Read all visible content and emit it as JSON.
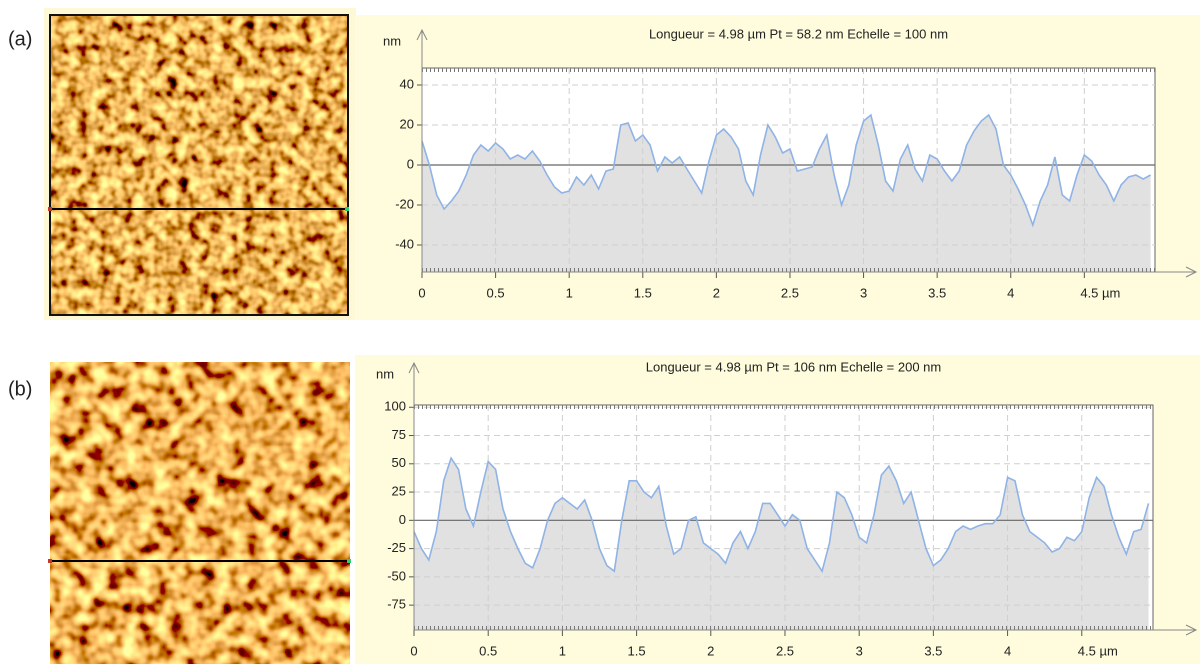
{
  "chart_data": [
    {
      "type": "area",
      "panel_label": "(a)",
      "title": "Longueur = 4.98 µm  Pt = 58.2 nm  Echelle = 100 nm",
      "y_label": "nm",
      "x": [
        0,
        0.05,
        0.1,
        0.15,
        0.2,
        0.25,
        0.3,
        0.35,
        0.4,
        0.45,
        0.5,
        0.55,
        0.6,
        0.65,
        0.7,
        0.75,
        0.8,
        0.85,
        0.9,
        0.95,
        1,
        1.05,
        1.1,
        1.15,
        1.2,
        1.25,
        1.3,
        1.35,
        1.4,
        1.45,
        1.5,
        1.55,
        1.6,
        1.65,
        1.7,
        1.75,
        1.8,
        1.85,
        1.9,
        1.95,
        2,
        2.05,
        2.1,
        2.15,
        2.2,
        2.25,
        2.3,
        2.35,
        2.4,
        2.45,
        2.5,
        2.55,
        2.6,
        2.65,
        2.7,
        2.75,
        2.8,
        2.85,
        2.9,
        2.95,
        3,
        3.05,
        3.1,
        3.15,
        3.2,
        3.25,
        3.3,
        3.35,
        3.4,
        3.45,
        3.5,
        3.55,
        3.6,
        3.65,
        3.7,
        3.75,
        3.8,
        3.85,
        3.9,
        3.95,
        4,
        4.05,
        4.1,
        4.15,
        4.2,
        4.25,
        4.3,
        4.35,
        4.4,
        4.45,
        4.5,
        4.55,
        4.6,
        4.65,
        4.7,
        4.75,
        4.8,
        4.85,
        4.9,
        4.95
      ],
      "values": [
        12,
        0,
        -15,
        -22,
        -18,
        -13,
        -5,
        5,
        10,
        7,
        11,
        8,
        3,
        5,
        3,
        7,
        2,
        -5,
        -11,
        -14,
        -13,
        -6,
        -10,
        -5,
        -12,
        -3,
        -2,
        20,
        21,
        12,
        15,
        10,
        -3,
        4,
        1,
        4,
        -2,
        -8,
        -14,
        2,
        15,
        18,
        14,
        8,
        -8,
        -15,
        5,
        20,
        14,
        6,
        8,
        -3,
        -2,
        -1,
        8,
        15,
        -5,
        -20,
        -10,
        10,
        22,
        25,
        10,
        -8,
        -13,
        3,
        10,
        -2,
        -8,
        5,
        3,
        -3,
        -8,
        -3,
        10,
        17,
        22,
        25,
        18,
        0,
        -5,
        -12,
        -20,
        -30,
        -18,
        -10,
        4,
        -15,
        -18,
        -5,
        5,
        2,
        -5,
        -10,
        -18,
        -10,
        -6,
        -5,
        -7,
        -5
      ],
      "line_color": "#8fb3e6",
      "fill_color": "#e1e1e1",
      "xlim": [
        0,
        4.98
      ],
      "ylim": [
        -53.5,
        48.5
      ],
      "xticks": [
        0,
        0.5,
        1,
        1.5,
        2,
        2.5,
        3,
        3.5,
        4,
        {
          "value": 4.5,
          "label": "4.5 µm"
        }
      ],
      "yticks": [
        -40,
        -20,
        0,
        20,
        40
      ],
      "grid": true
    },
    {
      "type": "area",
      "panel_label": "(b)",
      "title": "Longueur = 4.98 µm  Pt = 106 nm  Echelle = 200 nm",
      "y_label": "nm",
      "x": [
        0,
        0.05,
        0.1,
        0.15,
        0.2,
        0.25,
        0.3,
        0.35,
        0.4,
        0.45,
        0.5,
        0.55,
        0.6,
        0.65,
        0.7,
        0.75,
        0.8,
        0.85,
        0.9,
        0.95,
        1,
        1.05,
        1.1,
        1.15,
        1.2,
        1.25,
        1.3,
        1.35,
        1.4,
        1.45,
        1.5,
        1.55,
        1.6,
        1.65,
        1.7,
        1.75,
        1.8,
        1.85,
        1.9,
        1.95,
        2,
        2.05,
        2.1,
        2.15,
        2.2,
        2.25,
        2.3,
        2.35,
        2.4,
        2.45,
        2.5,
        2.55,
        2.6,
        2.65,
        2.7,
        2.75,
        2.8,
        2.85,
        2.9,
        2.95,
        3,
        3.05,
        3.1,
        3.15,
        3.2,
        3.25,
        3.3,
        3.35,
        3.4,
        3.45,
        3.5,
        3.55,
        3.6,
        3.65,
        3.7,
        3.75,
        3.8,
        3.85,
        3.9,
        3.95,
        4,
        4.05,
        4.1,
        4.15,
        4.2,
        4.25,
        4.3,
        4.35,
        4.4,
        4.45,
        4.5,
        4.55,
        4.6,
        4.65,
        4.7,
        4.75,
        4.8,
        4.85,
        4.9,
        4.95
      ],
      "values": [
        -10,
        -25,
        -35,
        -10,
        35,
        55,
        45,
        10,
        -5,
        25,
        52,
        45,
        10,
        -10,
        -25,
        -38,
        -42,
        -25,
        0,
        15,
        20,
        15,
        10,
        18,
        0,
        -25,
        -40,
        -45,
        0,
        35,
        35,
        25,
        20,
        30,
        -5,
        -30,
        -25,
        0,
        3,
        -20,
        -25,
        -30,
        -38,
        -20,
        -10,
        -25,
        -10,
        15,
        15,
        5,
        -5,
        5,
        0,
        -25,
        -35,
        -45,
        -20,
        25,
        20,
        5,
        -15,
        -20,
        5,
        40,
        48,
        35,
        15,
        25,
        0,
        -25,
        -40,
        -35,
        -25,
        -10,
        -5,
        -8,
        -5,
        -3,
        -3,
        5,
        38,
        35,
        5,
        -10,
        -15,
        -20,
        -28,
        -25,
        -15,
        -18,
        -10,
        20,
        38,
        30,
        5,
        -15,
        -30,
        -10,
        -8,
        15
      ],
      "line_color": "#8fb3e6",
      "fill_color": "#e1e1e1",
      "xlim": [
        0,
        4.98
      ],
      "ylim": [
        -97,
        102
      ],
      "xticks": [
        0,
        0.5,
        1,
        1.5,
        2,
        2.5,
        3,
        3.5,
        4,
        {
          "value": 4.5,
          "label": "4.5 µm"
        }
      ],
      "yticks": [
        -75,
        -50,
        -25,
        0,
        25,
        50,
        75,
        100
      ],
      "grid": true
    }
  ]
}
